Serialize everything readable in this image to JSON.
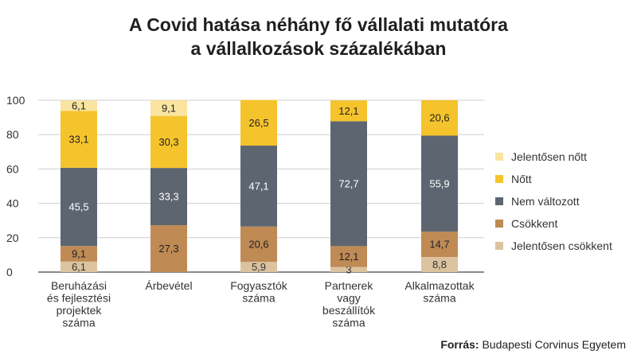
{
  "title_line1": "A Covid hatása néhány fő vállalati mutatóra",
  "title_line2": "a vállalkozások százalékában",
  "source_label": "Forrás:",
  "source_text": "Budapesti Corvinus Egyetem",
  "chart_data": {
    "type": "bar",
    "stacked": true,
    "title": "A Covid hatása néhány fő vállalati mutatóra a vállalkozások százalékában",
    "ylim": [
      0,
      100
    ],
    "yticks": [
      0,
      20,
      40,
      60,
      80,
      100
    ],
    "grid": true,
    "legend_position": "right",
    "categories": [
      [
        "Beruházási",
        "és fejlesztési",
        "projektek",
        "száma"
      ],
      [
        "Árbevétel"
      ],
      [
        "Fogyasztók",
        "száma"
      ],
      [
        "Partnerek",
        "vagy",
        "beszállítók",
        "száma"
      ],
      [
        "Alkalmazottak",
        "száma"
      ]
    ],
    "series": [
      {
        "name": "Jelentősen csökkent",
        "color": "#dcc3a0",
        "values": [
          6.1,
          0,
          5.9,
          3,
          8.8
        ],
        "labels": [
          "6,1",
          "",
          "5,9",
          "3",
          "8,8"
        ],
        "label_color": "#333333"
      },
      {
        "name": "Csökkent",
        "color": "#c08a55",
        "values": [
          9.1,
          27.3,
          20.6,
          12.1,
          14.7
        ],
        "labels": [
          "9,1",
          "27,3",
          "20,6",
          "12,1",
          "14,7"
        ],
        "label_color": "#222222"
      },
      {
        "name": "Nem változott",
        "color": "#5d6670",
        "values": [
          45.5,
          33.3,
          47.1,
          72.7,
          55.9
        ],
        "labels": [
          "45,5",
          "33,3",
          "47,1",
          "72,7",
          "55,9"
        ],
        "label_color": "#ffffff"
      },
      {
        "name": "Nőtt",
        "color": "#f5c42c",
        "values": [
          33.1,
          30.3,
          26.5,
          12.1,
          20.6
        ],
        "labels": [
          "33,1",
          "30,3",
          "26,5",
          "12,1",
          "20,6"
        ],
        "label_color": "#222222"
      },
      {
        "name": "Jelentősen nőtt",
        "color": "#fbe4a0",
        "values": [
          6.1,
          9.1,
          0,
          0,
          0
        ],
        "labels": [
          "6,1",
          "9,1",
          "",
          "",
          ""
        ],
        "label_color": "#222222"
      }
    ],
    "legend_order": [
      "Jelentősen nőtt",
      "Nőtt",
      "Nem változott",
      "Csökkent",
      "Jelentősen csökkent"
    ]
  }
}
